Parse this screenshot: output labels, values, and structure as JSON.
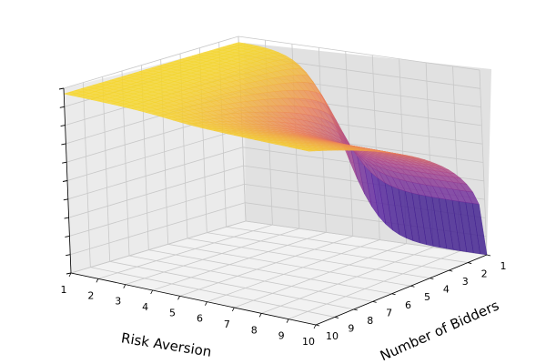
{
  "chart_data": {
    "type": "surface3d",
    "title": "",
    "xlabel": "Risk Aversion",
    "ylabel": "Number of Bidders",
    "zlabel": "",
    "x_ticks": [
      "1",
      "2",
      "3",
      "4",
      "5",
      "6",
      "7",
      "8",
      "9",
      "10"
    ],
    "y_ticks": [
      "1",
      "2",
      "3",
      "4",
      "5",
      "6",
      "7",
      "8",
      "9",
      "10"
    ],
    "xlim": [
      1,
      10
    ],
    "ylim": [
      1,
      10
    ],
    "zlim": [
      0,
      1
    ],
    "z_tick_count": 10,
    "colormap": "plasma",
    "grid": true,
    "surface_samples": {
      "note_x": "risk aversion",
      "note_y": "number of bidders",
      "z_at_corners": {
        "x1_y1": 0.97,
        "x1_y10": 0.97,
        "x10_y1": 0.0,
        "x10_y10": 0.94
      },
      "description_values": [
        {
          "x": 1,
          "y": 1,
          "z": 0.97
        },
        {
          "x": 3,
          "y": 10,
          "z": 0.96
        },
        {
          "x": 5,
          "y": 5,
          "z": 0.62
        },
        {
          "x": 7,
          "y": 2,
          "z": 0.18
        },
        {
          "x": 10,
          "y": 1,
          "z": 0.0
        },
        {
          "x": 10,
          "y": 8,
          "z": 0.72
        },
        {
          "x": 10,
          "y": 10,
          "z": 0.94
        }
      ]
    }
  },
  "colors": {
    "pane_left": "#ebebeb",
    "pane_right": "#e1e1e1",
    "pane_floor": "#f2f2f2",
    "grid": "#c8c8c8",
    "low": "#2a1a8c",
    "high": "#f7e225"
  }
}
